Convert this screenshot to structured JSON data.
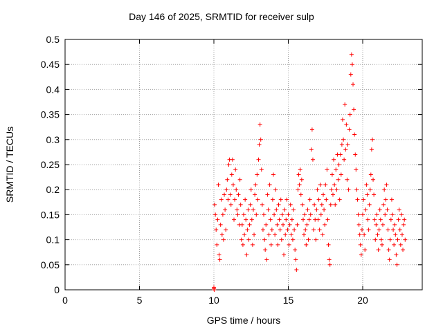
{
  "chart_data": {
    "type": "scatter",
    "title": "Day 146 of 2025, SRMTID for receiver sulp",
    "xlabel": "GPS time / hours",
    "ylabel": "SRMTID / TECUs",
    "xlim": [
      0,
      24
    ],
    "ylim": [
      0,
      0.5
    ],
    "xticks": [
      "0",
      "5",
      "10",
      "15",
      "20"
    ],
    "yticks": [
      "0",
      "0.05",
      "0.1",
      "0.15",
      "0.2",
      "0.25",
      "0.3",
      "0.35",
      "0.4",
      "0.45",
      "0.5"
    ],
    "grid": true,
    "marker": "+",
    "color": "#ff0000",
    "series": [
      {
        "name": "SRMTID",
        "points": [
          [
            10.0,
            0.002
          ],
          [
            10.0,
            0.005
          ],
          [
            10.02,
            0.0
          ],
          [
            10.05,
            0.17
          ],
          [
            10.1,
            0.15
          ],
          [
            10.15,
            0.12
          ],
          [
            10.2,
            0.09
          ],
          [
            10.25,
            0.14
          ],
          [
            10.3,
            0.21
          ],
          [
            10.35,
            0.07
          ],
          [
            10.4,
            0.06
          ],
          [
            10.45,
            0.13
          ],
          [
            10.5,
            0.18
          ],
          [
            10.55,
            0.11
          ],
          [
            10.6,
            0.15
          ],
          [
            10.65,
            0.1
          ],
          [
            10.7,
            0.19
          ],
          [
            10.75,
            0.16
          ],
          [
            10.8,
            0.12
          ],
          [
            10.85,
            0.2
          ],
          [
            10.9,
            0.22
          ],
          [
            10.95,
            0.18
          ],
          [
            11.0,
            0.25
          ],
          [
            11.05,
            0.26
          ],
          [
            11.1,
            0.19
          ],
          [
            11.15,
            0.17
          ],
          [
            11.2,
            0.23
          ],
          [
            11.25,
            0.26
          ],
          [
            11.3,
            0.21
          ],
          [
            11.35,
            0.14
          ],
          [
            11.4,
            0.18
          ],
          [
            11.45,
            0.24
          ],
          [
            11.5,
            0.2
          ],
          [
            11.55,
            0.16
          ],
          [
            11.6,
            0.15
          ],
          [
            11.65,
            0.19
          ],
          [
            11.7,
            0.13
          ],
          [
            11.75,
            0.22
          ],
          [
            11.8,
            0.17
          ],
          [
            11.85,
            0.1
          ],
          [
            11.9,
            0.13
          ],
          [
            11.95,
            0.09
          ],
          [
            12.0,
            0.15
          ],
          [
            12.05,
            0.11
          ],
          [
            12.1,
            0.18
          ],
          [
            12.15,
            0.14
          ],
          [
            12.2,
            0.07
          ],
          [
            12.25,
            0.12
          ],
          [
            12.3,
            0.16
          ],
          [
            12.35,
            0.1
          ],
          [
            12.4,
            0.13
          ],
          [
            12.45,
            0.17
          ],
          [
            12.5,
            0.2
          ],
          [
            12.55,
            0.14
          ],
          [
            12.6,
            0.09
          ],
          [
            12.65,
            0.16
          ],
          [
            12.7,
            0.11
          ],
          [
            12.75,
            0.19
          ],
          [
            12.8,
            0.21
          ],
          [
            12.85,
            0.15
          ],
          [
            12.9,
            0.23
          ],
          [
            12.95,
            0.18
          ],
          [
            13.0,
            0.26
          ],
          [
            13.05,
            0.29
          ],
          [
            13.1,
            0.33
          ],
          [
            13.15,
            0.3
          ],
          [
            13.2,
            0.24
          ],
          [
            13.25,
            0.17
          ],
          [
            13.3,
            0.12
          ],
          [
            13.35,
            0.15
          ],
          [
            13.4,
            0.1
          ],
          [
            13.45,
            0.08
          ],
          [
            13.5,
            0.13
          ],
          [
            13.55,
            0.06
          ],
          [
            13.6,
            0.19
          ],
          [
            13.65,
            0.16
          ],
          [
            13.7,
            0.11
          ],
          [
            13.75,
            0.21
          ],
          [
            13.8,
            0.14
          ],
          [
            13.85,
            0.09
          ],
          [
            13.9,
            0.12
          ],
          [
            13.95,
            0.18
          ],
          [
            14.0,
            0.23
          ],
          [
            14.05,
            0.15
          ],
          [
            14.1,
            0.11
          ],
          [
            14.15,
            0.2
          ],
          [
            14.2,
            0.16
          ],
          [
            14.25,
            0.13
          ],
          [
            14.3,
            0.09
          ],
          [
            14.35,
            0.17
          ],
          [
            14.4,
            0.14
          ],
          [
            14.45,
            0.12
          ],
          [
            14.5,
            0.18
          ],
          [
            14.55,
            0.1
          ],
          [
            14.6,
            0.15
          ],
          [
            14.65,
            0.13
          ],
          [
            14.7,
            0.07
          ],
          [
            14.75,
            0.16
          ],
          [
            14.8,
            0.11
          ],
          [
            14.85,
            0.14
          ],
          [
            14.9,
            0.18
          ],
          [
            14.95,
            0.12
          ],
          [
            15.0,
            0.15
          ],
          [
            15.05,
            0.09
          ],
          [
            15.1,
            0.13
          ],
          [
            15.15,
            0.17
          ],
          [
            15.2,
            0.11
          ],
          [
            15.25,
            0.14
          ],
          [
            15.3,
            0.1
          ],
          [
            15.35,
            0.16
          ],
          [
            15.4,
            0.12
          ],
          [
            15.45,
            0.08
          ],
          [
            15.5,
            0.06
          ],
          [
            15.55,
            0.04
          ],
          [
            15.6,
            0.13
          ],
          [
            15.65,
            0.2
          ],
          [
            15.7,
            0.23
          ],
          [
            15.75,
            0.21
          ],
          [
            15.8,
            0.24
          ],
          [
            15.85,
            0.19
          ],
          [
            15.9,
            0.22
          ],
          [
            15.95,
            0.17
          ],
          [
            16.0,
            0.14
          ],
          [
            16.05,
            0.11
          ],
          [
            16.1,
            0.15
          ],
          [
            16.15,
            0.12
          ],
          [
            16.2,
            0.09
          ],
          [
            16.25,
            0.13
          ],
          [
            16.3,
            0.16
          ],
          [
            16.35,
            0.1
          ],
          [
            16.4,
            0.14
          ],
          [
            16.45,
            0.18
          ],
          [
            16.5,
            0.15
          ],
          [
            16.55,
            0.28
          ],
          [
            16.6,
            0.32
          ],
          [
            16.65,
            0.26
          ],
          [
            16.7,
            0.12
          ],
          [
            16.75,
            0.17
          ],
          [
            16.8,
            0.14
          ],
          [
            16.85,
            0.1
          ],
          [
            16.9,
            0.16
          ],
          [
            16.95,
            0.2
          ],
          [
            17.0,
            0.14
          ],
          [
            17.05,
            0.18
          ],
          [
            17.1,
            0.12
          ],
          [
            17.15,
            0.21
          ],
          [
            17.2,
            0.15
          ],
          [
            17.25,
            0.17
          ],
          [
            17.3,
            0.11
          ],
          [
            17.35,
            0.19
          ],
          [
            17.4,
            0.16
          ],
          [
            17.45,
            0.13
          ],
          [
            17.5,
            0.21
          ],
          [
            17.55,
            0.18
          ],
          [
            17.6,
            0.24
          ],
          [
            17.65,
            0.14
          ],
          [
            17.7,
            0.09
          ],
          [
            17.75,
            0.06
          ],
          [
            17.8,
            0.05
          ],
          [
            17.85,
            0.17
          ],
          [
            17.9,
            0.2
          ],
          [
            17.95,
            0.23
          ],
          [
            18.0,
            0.19
          ],
          [
            18.05,
            0.26
          ],
          [
            18.1,
            0.21
          ],
          [
            18.15,
            0.17
          ],
          [
            18.2,
            0.24
          ],
          [
            18.25,
            0.2
          ],
          [
            18.3,
            0.27
          ],
          [
            18.35,
            0.22
          ],
          [
            18.4,
            0.25
          ],
          [
            18.45,
            0.18
          ],
          [
            18.5,
            0.27
          ],
          [
            18.55,
            0.23
          ],
          [
            18.6,
            0.29
          ],
          [
            18.65,
            0.34
          ],
          [
            18.7,
            0.3
          ],
          [
            18.75,
            0.26
          ],
          [
            18.8,
            0.37
          ],
          [
            18.85,
            0.28
          ],
          [
            18.9,
            0.33
          ],
          [
            18.95,
            0.22
          ],
          [
            19.0,
            0.29
          ],
          [
            19.05,
            0.2
          ],
          [
            19.1,
            0.32
          ],
          [
            19.15,
            0.35
          ],
          [
            19.2,
            0.43
          ],
          [
            19.25,
            0.47
          ],
          [
            19.3,
            0.45
          ],
          [
            19.35,
            0.41
          ],
          [
            19.4,
            0.36
          ],
          [
            19.45,
            0.31
          ],
          [
            19.5,
            0.27
          ],
          [
            19.55,
            0.24
          ],
          [
            19.6,
            0.2
          ],
          [
            19.65,
            0.18
          ],
          [
            19.7,
            0.15
          ],
          [
            19.75,
            0.13
          ],
          [
            19.8,
            0.11
          ],
          [
            19.85,
            0.09
          ],
          [
            19.9,
            0.07
          ],
          [
            19.95,
            0.12
          ],
          [
            20.0,
            0.15
          ],
          [
            20.05,
            0.18
          ],
          [
            20.1,
            0.11
          ],
          [
            20.15,
            0.08
          ],
          [
            20.2,
            0.16
          ],
          [
            20.25,
            0.21
          ],
          [
            20.3,
            0.19
          ],
          [
            20.35,
            0.14
          ],
          [
            20.4,
            0.12
          ],
          [
            20.45,
            0.17
          ],
          [
            20.5,
            0.2
          ],
          [
            20.55,
            0.23
          ],
          [
            20.6,
            0.28
          ],
          [
            20.65,
            0.3
          ],
          [
            20.7,
            0.22
          ],
          [
            20.75,
            0.19
          ],
          [
            20.8,
            0.14
          ],
          [
            20.85,
            0.1
          ],
          [
            20.9,
            0.13
          ],
          [
            20.95,
            0.15
          ],
          [
            21.0,
            0.11
          ],
          [
            21.05,
            0.08
          ],
          [
            21.1,
            0.12
          ],
          [
            21.15,
            0.16
          ],
          [
            21.2,
            0.14
          ],
          [
            21.25,
            0.1
          ],
          [
            21.3,
            0.09
          ],
          [
            21.35,
            0.13
          ],
          [
            21.4,
            0.17
          ],
          [
            21.45,
            0.2
          ],
          [
            21.5,
            0.15
          ],
          [
            21.55,
            0.18
          ],
          [
            21.6,
            0.21
          ],
          [
            21.65,
            0.16
          ],
          [
            21.7,
            0.12
          ],
          [
            21.75,
            0.08
          ],
          [
            21.8,
            0.06
          ],
          [
            21.85,
            0.1
          ],
          [
            21.9,
            0.14
          ],
          [
            21.95,
            0.18
          ],
          [
            22.0,
            0.15
          ],
          [
            22.05,
            0.12
          ],
          [
            22.1,
            0.09
          ],
          [
            22.15,
            0.13
          ],
          [
            22.2,
            0.11
          ],
          [
            22.25,
            0.07
          ],
          [
            22.3,
            0.05
          ],
          [
            22.35,
            0.1
          ],
          [
            22.4,
            0.14
          ],
          [
            22.45,
            0.16
          ],
          [
            22.5,
            0.12
          ],
          [
            22.55,
            0.09
          ],
          [
            22.6,
            0.15
          ],
          [
            22.65,
            0.11
          ],
          [
            22.7,
            0.08
          ],
          [
            22.75,
            0.13
          ],
          [
            22.8,
            0.14
          ],
          [
            22.85,
            0.1
          ]
        ]
      }
    ]
  }
}
